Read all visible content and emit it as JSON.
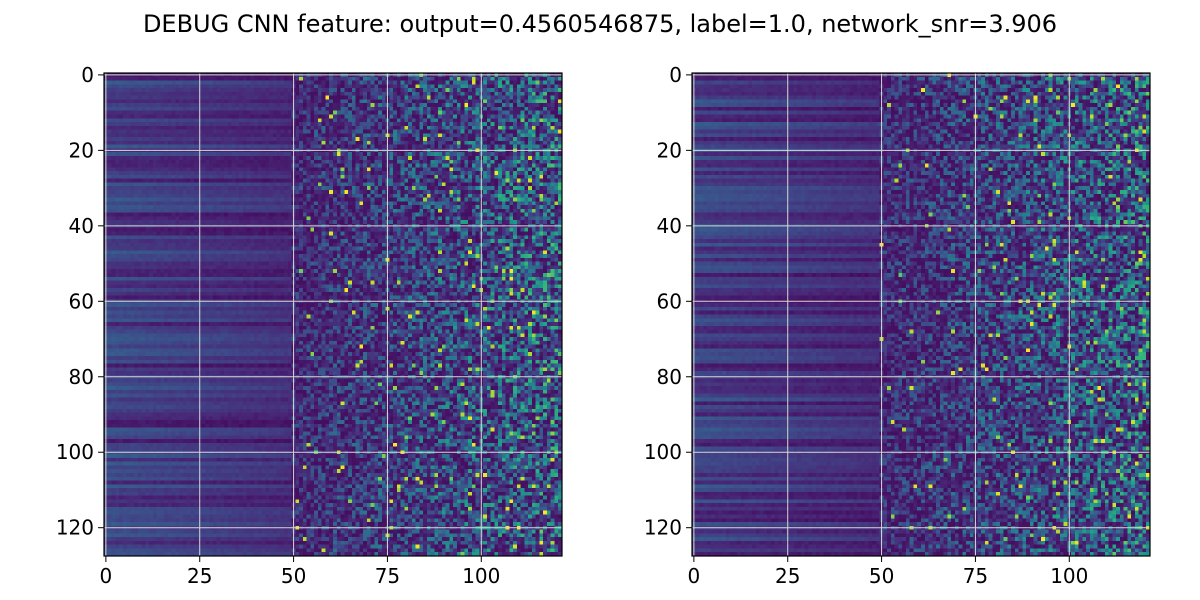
{
  "title": "DEBUG CNN feature: output=0.4560546875, label=1.0, network_snr=3.906",
  "chart_data": [
    {
      "type": "heatmap",
      "colormap": "viridis",
      "rows": 128,
      "cols": 122,
      "x_range": [
        -0.5,
        121.5
      ],
      "y_range": [
        127.5,
        -0.5
      ],
      "xticks": [
        0,
        25,
        50,
        75,
        100
      ],
      "xtick_labels": [
        "0",
        "25",
        "50",
        "75",
        "100"
      ],
      "yticks": [
        0,
        20,
        40,
        60,
        80,
        100,
        120
      ],
      "ytick_labels": [
        "0",
        "20",
        "40",
        "60",
        "80",
        "100",
        "120"
      ],
      "grid": true,
      "pattern": "columns 0-49 smooth dark horizontal streaks; columns 50+ noisy with bright speckles",
      "seed": 7
    },
    {
      "type": "heatmap",
      "colormap": "viridis",
      "rows": 128,
      "cols": 122,
      "x_range": [
        -0.5,
        121.5
      ],
      "y_range": [
        127.5,
        -0.5
      ],
      "xticks": [
        0,
        25,
        50,
        75,
        100
      ],
      "xtick_labels": [
        "0",
        "25",
        "50",
        "75",
        "100"
      ],
      "yticks": [
        0,
        20,
        40,
        60,
        80,
        100,
        120
      ],
      "ytick_labels": [
        "0",
        "20",
        "40",
        "60",
        "80",
        "100",
        "120"
      ],
      "grid": true,
      "pattern": "columns 0-49 smooth dark horizontal streaks; columns 50+ noisy with bright speckles",
      "seed": 23
    }
  ],
  "colors": {
    "viridis": [
      "#440154",
      "#482878",
      "#3e4a89",
      "#31688e",
      "#26828e",
      "#1f9e89",
      "#35b779",
      "#6ece58",
      "#b5de2b",
      "#fde725"
    ],
    "grid": "#d8d8d8",
    "frame": "#000000"
  }
}
